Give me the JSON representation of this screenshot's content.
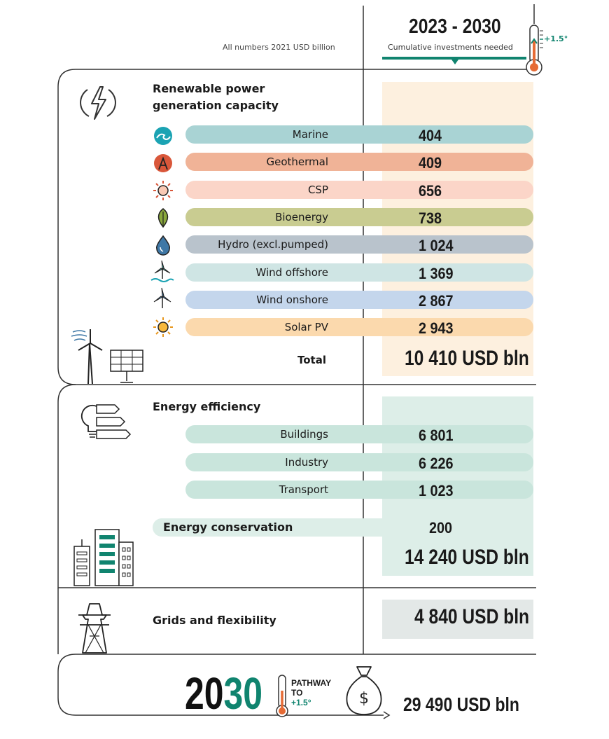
{
  "header": {
    "note": "All numbers 2021 USD billion",
    "period": "2023 - 2030",
    "subtitle": "Cumulative investments needed",
    "temp_label": "+1.5°"
  },
  "colors": {
    "marine": "#a9d3d4",
    "geothermal": "#f0b397",
    "csp": "#fbd5c8",
    "bioenergy": "#c9cc91",
    "hydro": "#b9c3cc",
    "wind_offshore": "#cfe5e4",
    "wind_onshore": "#c4d6ec",
    "solar": "#fbd9ad",
    "efficiency": "#c9e5dc",
    "renew_bg": "#fdf0df",
    "eff_bg": "#ddeee8",
    "grid_bg": "#e3e8e7",
    "accent_green": "#10846f",
    "accent_orange": "#e66b35"
  },
  "renewables": {
    "title_line1": "Renewable power",
    "title_line2": "generation capacity",
    "total_label": "Total",
    "total": "10 410  USD bln"
  },
  "efficiency": {
    "title": "Energy efficiency",
    "conservation_label": "Energy conservation",
    "conservation_value": "200",
    "total": "14 240  USD bln"
  },
  "grids": {
    "title": "Grids and flexibility",
    "total": "4 840  USD bln"
  },
  "footer": {
    "year_a": "20",
    "year_b": "30",
    "pathway_line1": "PATHWAY",
    "pathway_line2": "TO",
    "pathway_line3": "+1.5°",
    "grand_total": "29 490  USD bln"
  },
  "chart_data": {
    "type": "bar",
    "title": "2023 - 2030",
    "subtitle": "Cumulative investments needed",
    "unit": "2021 USD billion",
    "groups": [
      {
        "name": "Renewable power generation capacity",
        "categories": [
          "Marine",
          "Geothermal",
          "CSP",
          "Bioenergy",
          "Hydro (excl.pumped)",
          "Wind offshore",
          "Wind onshore",
          "Solar PV"
        ],
        "values": [
          404,
          409,
          656,
          738,
          1024,
          1369,
          2867,
          2943
        ],
        "value_labels": [
          "404",
          "409",
          "656",
          "738",
          "1 024",
          "1 369",
          "2 867",
          "2 943"
        ],
        "total": 10410
      },
      {
        "name": "Energy efficiency",
        "categories": [
          "Buildings",
          "Industry",
          "Transport"
        ],
        "values": [
          6801,
          6226,
          1023
        ],
        "value_labels": [
          "6 801",
          "6 226",
          "1 023"
        ],
        "extra": {
          "name": "Energy conservation",
          "value": 200
        },
        "total": 14240
      },
      {
        "name": "Grids and flexibility",
        "total": 4840
      }
    ],
    "grand_total": 29490
  }
}
